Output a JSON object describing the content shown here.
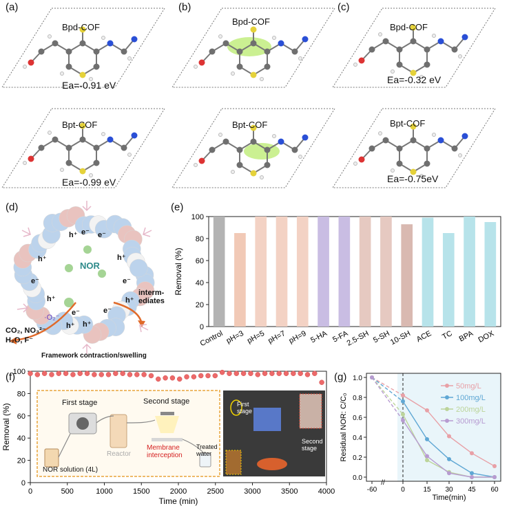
{
  "labels": {
    "a": "(a)",
    "b": "(b)",
    "c": "(c)",
    "d": "(d)",
    "e": "(e)",
    "f": "(f)",
    "g": "(g)"
  },
  "dft": {
    "a_top_name": "Bpd-COF",
    "a_top_ea": "Ea=-0.91 eV",
    "a_bot_name": "Bpt-COF",
    "a_bot_ea": "Ea=-0.99 eV",
    "b_top_name": "Bpd-COF",
    "b_bot_name": "Bpt-COF",
    "c_top_name": "Bpd-COF",
    "c_top_ea": "Ea=-0.32 eV",
    "c_bot_name": "Bpt-COF",
    "c_bot_ea": "Ea=-0.75eV"
  },
  "mechanism": {
    "center": "NOR",
    "intermediates": "interm-\nediates",
    "products_line1": "CO₂, NO₃²⁻",
    "products_line2": "H₂O, F⁻",
    "o2": "·O₂⁻",
    "caption": "Framework contraction/swelling",
    "e": "e⁻",
    "h": "h⁺"
  },
  "chart_data": [
    {
      "id": "e",
      "type": "bar",
      "ylabel": "Removal (%)",
      "ylim": [
        0,
        100
      ],
      "yticks": [
        0,
        20,
        40,
        60,
        80,
        100
      ],
      "categories": [
        "Control",
        "pH=3",
        "pH=5",
        "pH=7",
        "pH=9",
        "5-HA",
        "5-FA",
        "2.5-SH",
        "5-SH",
        "10-SH",
        "ACE",
        "TC",
        "BPA",
        "DOX"
      ],
      "values": [
        100,
        85,
        100,
        100,
        100,
        100,
        100,
        100,
        100,
        93,
        99,
        85,
        100,
        95
      ],
      "colors": [
        "#b3b3b3",
        "#f1c9b6",
        "#f3d2c4",
        "#f3d2c4",
        "#f3d2c4",
        "#c9bde3",
        "#c9bde3",
        "#e6c9c1",
        "#e6c9c1",
        "#d9b9b1",
        "#b7e3ea",
        "#b7e3ea",
        "#b7e3ea",
        "#b7e3ea"
      ]
    },
    {
      "id": "f",
      "type": "scatter",
      "xlabel": "Time (min)",
      "ylabel": "Removal  (%)",
      "xlim": [
        0,
        4000
      ],
      "ylim": [
        0,
        100
      ],
      "xticks": [
        0,
        500,
        1000,
        1500,
        2000,
        2500,
        3000,
        3500,
        4000
      ],
      "yticks": [
        0,
        20,
        40,
        60,
        80,
        100
      ],
      "x": [
        0,
        96,
        192,
        288,
        384,
        480,
        576,
        672,
        768,
        864,
        960,
        1056,
        1152,
        1248,
        1344,
        1440,
        1536,
        1632,
        1728,
        1824,
        1920,
        2016,
        2112,
        2208,
        2304,
        2400,
        2496,
        2592,
        2688,
        2784,
        2880,
        2976,
        3072,
        3168,
        3264,
        3360,
        3456,
        3552,
        3648,
        3744,
        3840,
        3936
      ],
      "y": [
        98,
        97,
        98,
        97,
        98,
        98,
        97,
        98,
        98,
        97,
        97,
        97,
        98,
        98,
        97,
        97,
        97,
        96,
        93,
        94,
        94,
        93,
        95,
        95,
        96,
        96,
        96,
        99,
        98,
        98,
        98,
        98,
        97,
        98,
        98,
        98,
        98,
        98,
        98,
        97,
        98,
        90
      ],
      "inset": {
        "first_stage": "First stage",
        "second_stage": "Second stage",
        "reactor": "Reactor",
        "membrane": "Membrane\ninterception",
        "treated": "Treated\nwater",
        "solution": "NOR solution (4L)",
        "photo_first": "First\nstage",
        "photo_second": "Second\nstage"
      }
    },
    {
      "id": "g",
      "type": "line",
      "xlabel": "Time(min)",
      "ylabel": "Residual NOR: C/C₀",
      "xticks": [
        "-60",
        "0",
        "15",
        "30",
        "45",
        "60"
      ],
      "ylim": [
        0,
        1.0
      ],
      "yticks": [
        "0.0",
        "0.2",
        "0.4",
        "0.6",
        "0.8",
        "1.0"
      ],
      "x": [
        -60,
        0,
        15,
        30,
        45,
        60
      ],
      "series": [
        {
          "name": "50mg/L",
          "color": "#e8a0a6",
          "values": [
            1.0,
            0.82,
            0.67,
            0.41,
            0.24,
            0.11
          ]
        },
        {
          "name": "100mg/L",
          "color": "#5fa7d4",
          "values": [
            1.0,
            0.76,
            0.38,
            0.18,
            0.04,
            0.0
          ]
        },
        {
          "name": "200mg/L",
          "color": "#bcd49a",
          "values": [
            1.0,
            0.63,
            0.17,
            0.05,
            0.0,
            0.0
          ]
        },
        {
          "name": "300mg/L",
          "color": "#b79bd1",
          "values": [
            1.0,
            0.57,
            0.21,
            0.04,
            0.0,
            0.0
          ]
        }
      ]
    }
  ]
}
